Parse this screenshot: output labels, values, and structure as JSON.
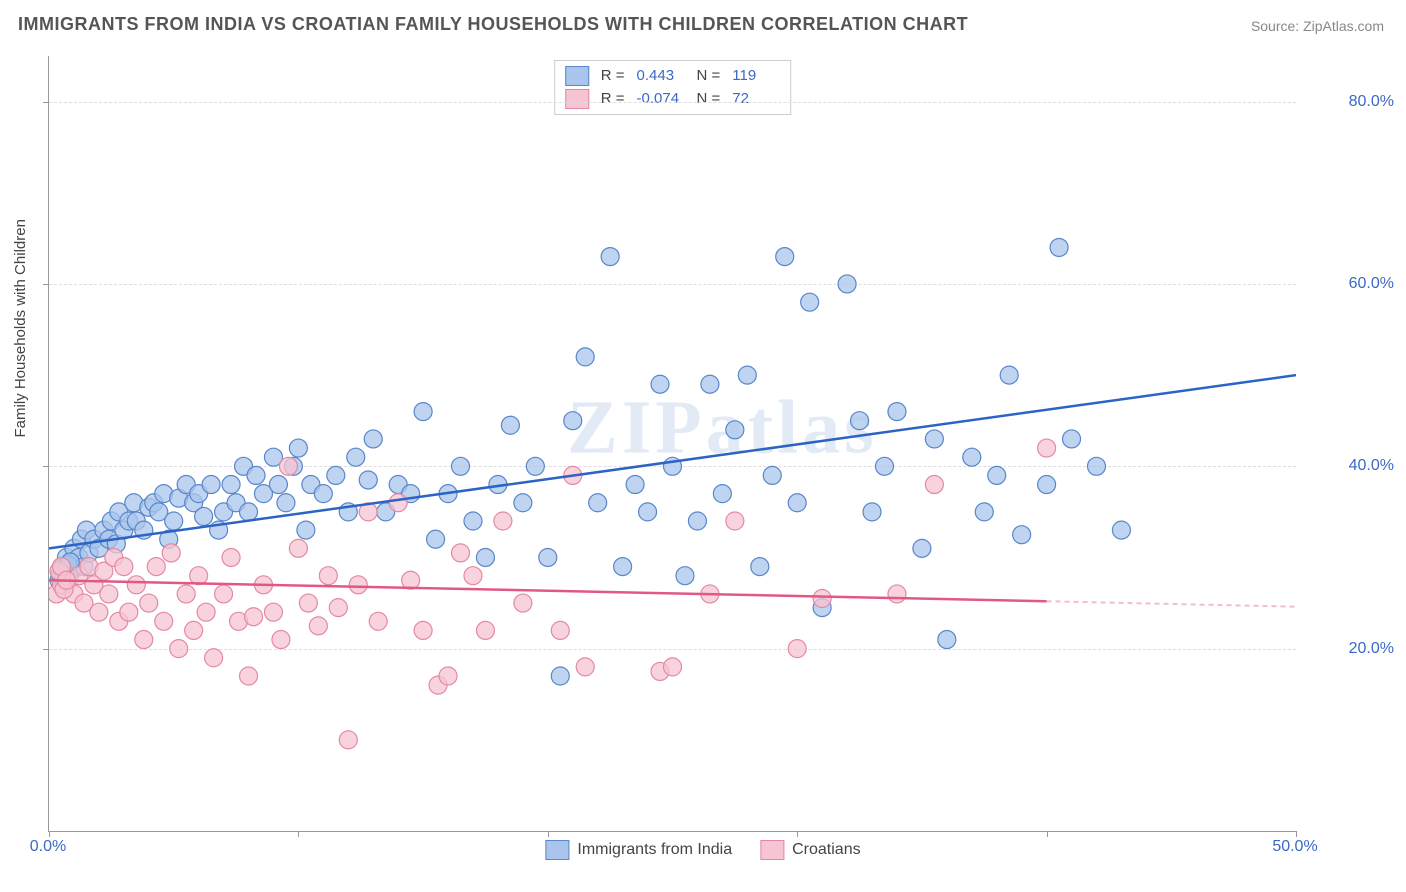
{
  "title": "IMMIGRANTS FROM INDIA VS CROATIAN FAMILY HOUSEHOLDS WITH CHILDREN CORRELATION CHART",
  "source_label": "Source: ZipAtlas.com",
  "ylabel": "Family Households with Children",
  "watermark": "ZIPatlas",
  "chart": {
    "type": "scatter",
    "xlim": [
      0,
      50
    ],
    "ylim": [
      0,
      85
    ],
    "x_ticks": [
      0,
      10,
      20,
      30,
      40,
      50
    ],
    "x_tick_labels": {
      "0": "0.0%",
      "50": "50.0%"
    },
    "y_gridlines": [
      20,
      40,
      60,
      80
    ],
    "y_tick_labels": {
      "20": "20.0%",
      "40": "40.0%",
      "60": "60.0%",
      "80": "80.0%"
    },
    "background_color": "#ffffff",
    "grid_color": "#dddddd",
    "axis_color": "#999999",
    "label_color": "#3b69c6",
    "series": [
      {
        "id": "india",
        "label": "Immigrants from India",
        "marker_color": "#a9c5ec",
        "marker_border": "#5a86c9",
        "marker_radius": 9,
        "marker_opacity": 0.75,
        "R": "0.443",
        "N": "119",
        "regression": {
          "x1": 0,
          "y1": 31,
          "x2": 50,
          "y2": 50,
          "color": "#2b64c4",
          "width": 2.5,
          "dash": "none"
        },
        "points": [
          [
            0.5,
            28
          ],
          [
            0.6,
            29
          ],
          [
            0.7,
            30
          ],
          [
            0.8,
            29
          ],
          [
            0.9,
            28.5
          ],
          [
            1,
            31
          ],
          [
            1.2,
            30
          ],
          [
            1.3,
            32
          ],
          [
            1.4,
            29
          ],
          [
            1.5,
            33
          ],
          [
            1.6,
            30.5
          ],
          [
            1.8,
            32
          ],
          [
            2,
            31
          ],
          [
            2.2,
            33
          ],
          [
            2.4,
            32
          ],
          [
            2.5,
            34
          ],
          [
            2.7,
            31.5
          ],
          [
            2.8,
            35
          ],
          [
            3,
            33
          ],
          [
            3.2,
            34
          ],
          [
            3.4,
            36
          ],
          [
            3.5,
            34
          ],
          [
            3.8,
            33
          ],
          [
            4,
            35.5
          ],
          [
            4.2,
            36
          ],
          [
            4.4,
            35
          ],
          [
            4.6,
            37
          ],
          [
            4.8,
            32
          ],
          [
            5,
            34
          ],
          [
            5.2,
            36.5
          ],
          [
            5.5,
            38
          ],
          [
            5.8,
            36
          ],
          [
            6,
            37
          ],
          [
            6.2,
            34.5
          ],
          [
            6.5,
            38
          ],
          [
            6.8,
            33
          ],
          [
            7,
            35
          ],
          [
            7.3,
            38
          ],
          [
            7.5,
            36
          ],
          [
            7.8,
            40
          ],
          [
            8,
            35
          ],
          [
            8.3,
            39
          ],
          [
            8.6,
            37
          ],
          [
            9,
            41
          ],
          [
            9.2,
            38
          ],
          [
            9.5,
            36
          ],
          [
            9.8,
            40
          ],
          [
            10,
            42
          ],
          [
            10.3,
            33
          ],
          [
            10.5,
            38
          ],
          [
            11,
            37
          ],
          [
            11.5,
            39
          ],
          [
            12,
            35
          ],
          [
            12.3,
            41
          ],
          [
            12.8,
            38.5
          ],
          [
            13,
            43
          ],
          [
            13.5,
            35
          ],
          [
            14,
            38
          ],
          [
            14.5,
            37
          ],
          [
            15,
            46
          ],
          [
            15.5,
            32
          ],
          [
            16,
            37
          ],
          [
            16.5,
            40
          ],
          [
            17,
            34
          ],
          [
            17.5,
            30
          ],
          [
            18,
            38
          ],
          [
            18.5,
            44.5
          ],
          [
            19,
            36
          ],
          [
            19.5,
            40
          ],
          [
            20,
            30
          ],
          [
            20.5,
            17
          ],
          [
            21,
            45
          ],
          [
            21.5,
            52
          ],
          [
            22,
            36
          ],
          [
            22.5,
            63
          ],
          [
            23,
            29
          ],
          [
            23.5,
            38
          ],
          [
            24,
            35
          ],
          [
            24.5,
            49
          ],
          [
            25,
            40
          ],
          [
            25.5,
            28
          ],
          [
            26,
            34
          ],
          [
            26.5,
            49
          ],
          [
            27,
            37
          ],
          [
            27.5,
            44
          ],
          [
            28,
            50
          ],
          [
            28.5,
            29
          ],
          [
            29,
            39
          ],
          [
            29.5,
            63
          ],
          [
            30,
            36
          ],
          [
            30.5,
            58
          ],
          [
            31,
            24.5
          ],
          [
            32,
            60
          ],
          [
            32.5,
            45
          ],
          [
            33,
            35
          ],
          [
            33.5,
            40
          ],
          [
            34,
            46
          ],
          [
            35,
            31
          ],
          [
            35.5,
            43
          ],
          [
            36,
            21
          ],
          [
            37,
            41
          ],
          [
            37.5,
            35
          ],
          [
            38,
            39
          ],
          [
            38.5,
            50
          ],
          [
            39,
            32.5
          ],
          [
            40,
            38
          ],
          [
            40.5,
            64
          ],
          [
            41,
            43
          ],
          [
            42,
            40
          ],
          [
            43,
            33
          ],
          [
            0.4,
            27.5
          ],
          [
            0.45,
            28.2
          ],
          [
            0.55,
            29
          ],
          [
            0.6,
            27
          ],
          [
            0.65,
            28.5
          ],
          [
            0.7,
            28.8
          ],
          [
            0.75,
            29.2
          ],
          [
            0.8,
            28
          ],
          [
            0.85,
            29.5
          ]
        ]
      },
      {
        "id": "croatia",
        "label": "Croatians",
        "marker_color": "#f6c4d2",
        "marker_border": "#e389a4",
        "marker_radius": 9,
        "marker_opacity": 0.75,
        "R": "-0.074",
        "N": "72",
        "regression": {
          "x1": 0,
          "y1": 27.5,
          "x2": 40,
          "y2": 25.2,
          "color": "#e15983",
          "width": 2.5,
          "dash": "none"
        },
        "regression_ext": {
          "x1": 40,
          "y1": 25.2,
          "x2": 50,
          "y2": 24.6,
          "color": "#f3bccb",
          "width": 2,
          "dash": "5,4"
        },
        "points": [
          [
            0.3,
            26
          ],
          [
            0.5,
            27
          ],
          [
            0.6,
            28
          ],
          [
            0.8,
            27.5
          ],
          [
            1,
            26
          ],
          [
            1.2,
            28
          ],
          [
            1.4,
            25
          ],
          [
            1.6,
            29
          ],
          [
            1.8,
            27
          ],
          [
            2,
            24
          ],
          [
            2.2,
            28.5
          ],
          [
            2.4,
            26
          ],
          [
            2.6,
            30
          ],
          [
            2.8,
            23
          ],
          [
            3,
            29
          ],
          [
            3.2,
            24
          ],
          [
            3.5,
            27
          ],
          [
            3.8,
            21
          ],
          [
            4,
            25
          ],
          [
            4.3,
            29
          ],
          [
            4.6,
            23
          ],
          [
            4.9,
            30.5
          ],
          [
            5.2,
            20
          ],
          [
            5.5,
            26
          ],
          [
            5.8,
            22
          ],
          [
            6,
            28
          ],
          [
            6.3,
            24
          ],
          [
            6.6,
            19
          ],
          [
            7,
            26
          ],
          [
            7.3,
            30
          ],
          [
            7.6,
            23
          ],
          [
            8,
            17
          ],
          [
            8.2,
            23.5
          ],
          [
            8.6,
            27
          ],
          [
            9,
            24
          ],
          [
            9.3,
            21
          ],
          [
            9.6,
            40
          ],
          [
            10,
            31
          ],
          [
            10.4,
            25
          ],
          [
            10.8,
            22.5
          ],
          [
            11.2,
            28
          ],
          [
            11.6,
            24.5
          ],
          [
            12,
            10
          ],
          [
            12.4,
            27
          ],
          [
            12.8,
            35
          ],
          [
            13.2,
            23
          ],
          [
            14,
            36
          ],
          [
            14.5,
            27.5
          ],
          [
            15,
            22
          ],
          [
            15.6,
            16
          ],
          [
            16,
            17
          ],
          [
            16.5,
            30.5
          ],
          [
            17,
            28
          ],
          [
            17.5,
            22
          ],
          [
            18.2,
            34
          ],
          [
            19,
            25
          ],
          [
            20.5,
            22
          ],
          [
            21,
            39
          ],
          [
            21.5,
            18
          ],
          [
            24.5,
            17.5
          ],
          [
            25,
            18
          ],
          [
            26.5,
            26
          ],
          [
            27.5,
            34
          ],
          [
            30,
            20
          ],
          [
            31,
            25.5
          ],
          [
            34,
            26
          ],
          [
            35.5,
            38
          ],
          [
            40,
            42
          ],
          [
            0.4,
            28.5
          ],
          [
            0.5,
            29
          ],
          [
            0.6,
            26.5
          ],
          [
            0.7,
            27.5
          ]
        ]
      }
    ]
  }
}
